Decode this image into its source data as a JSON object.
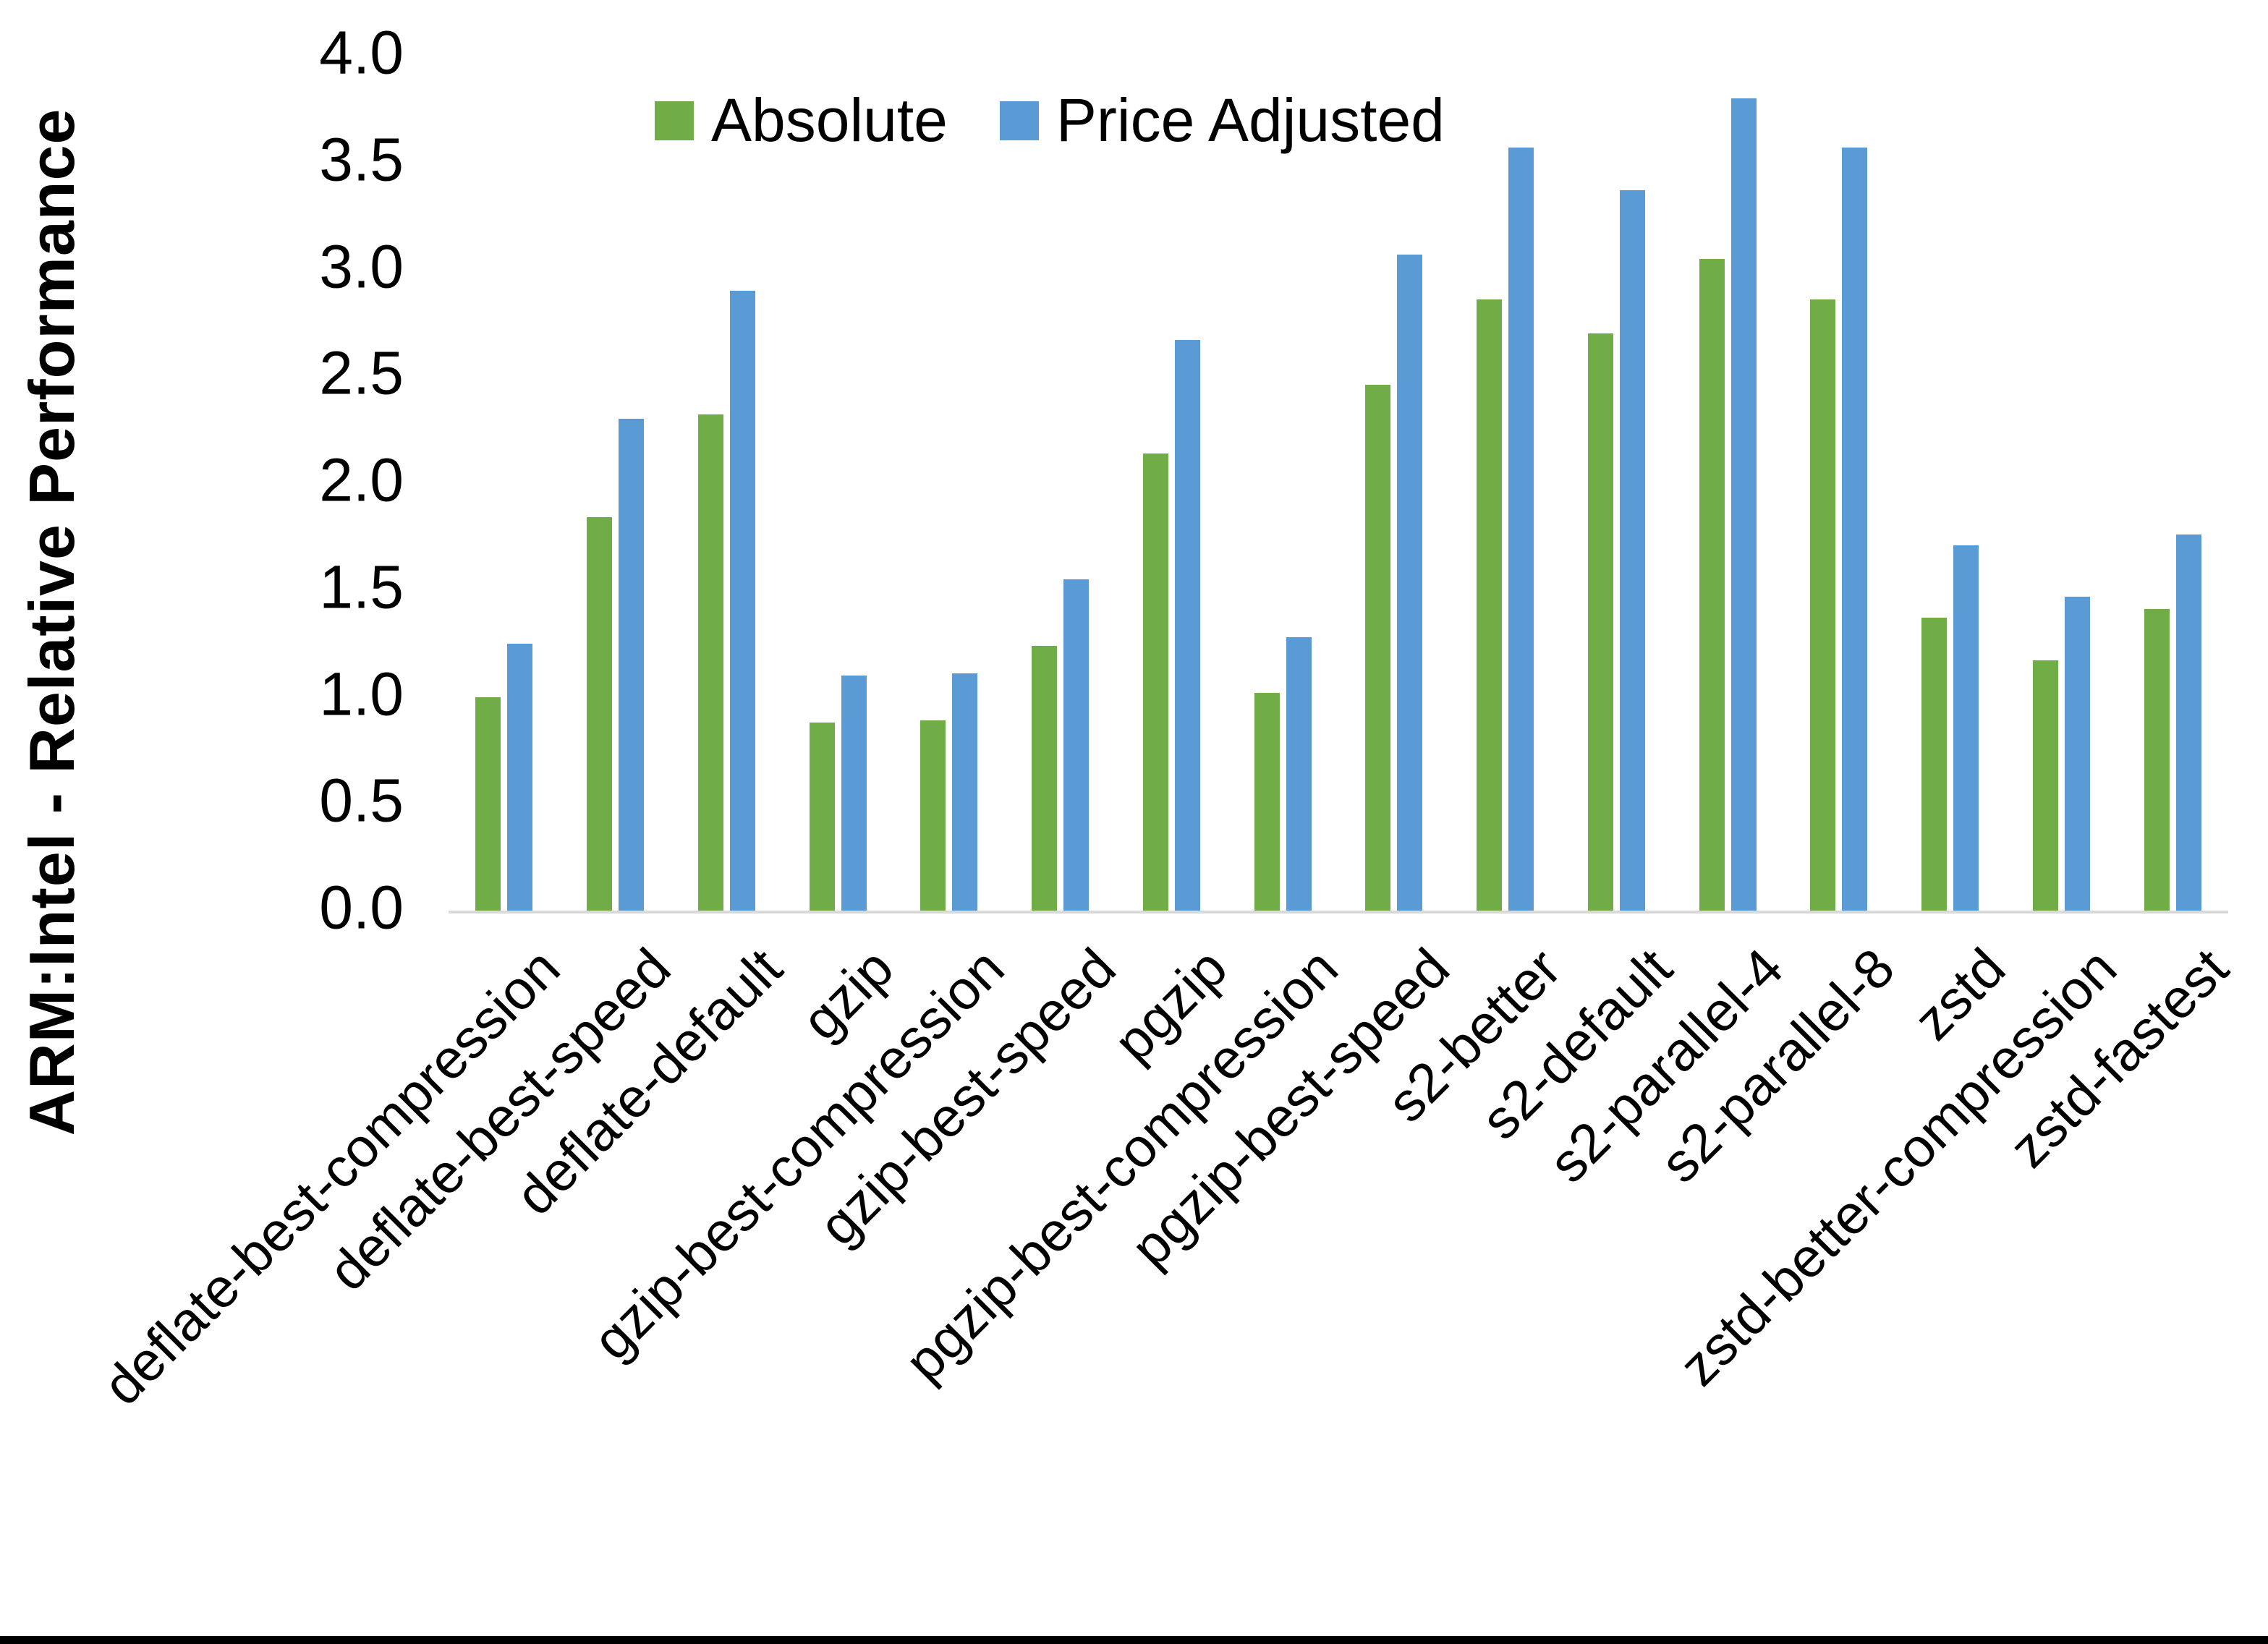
{
  "chart_data": {
    "type": "bar",
    "title": "",
    "ylabel": "ARM:Intel - Relative Performance",
    "xlabel": "",
    "ylim": [
      0.0,
      4.0
    ],
    "ytick_step": 0.5,
    "grid": false,
    "legend_position": "top-center",
    "baseline_color": "#d9d9d9",
    "categories": [
      "deflate-best-compression",
      "deflate-best-speed",
      "deflate-default",
      "gzip",
      "gzip-best-compression",
      "gzip-best-speed",
      "pgzip",
      "pgzip-best-compression",
      "pgzip-best-speed",
      "s2-better",
      "s2-default",
      "s2-parallel-4",
      "s2-parallel-8",
      "zstd",
      "zstd-better-compression",
      "zstd-fastest"
    ],
    "series": [
      {
        "name": "Absolute",
        "color": "#70AD47",
        "values": [
          1.0,
          1.84,
          2.32,
          0.88,
          0.89,
          1.24,
          2.14,
          1.02,
          2.46,
          2.86,
          2.7,
          3.05,
          2.86,
          1.37,
          1.17,
          1.41
        ]
      },
      {
        "name": "Price Adjusted",
        "color": "#5B9BD5",
        "values": [
          1.25,
          2.3,
          2.9,
          1.1,
          1.11,
          1.55,
          2.67,
          1.28,
          3.07,
          3.57,
          3.37,
          3.8,
          3.57,
          1.71,
          1.47,
          1.76
        ]
      }
    ]
  }
}
